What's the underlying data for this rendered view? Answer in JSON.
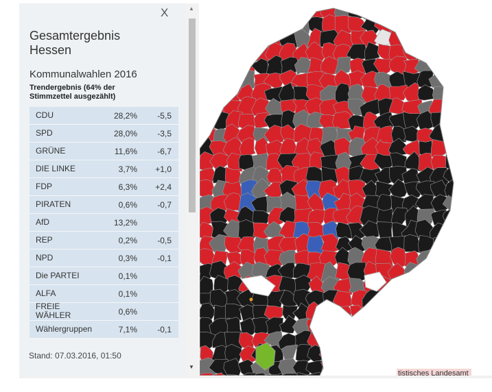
{
  "panel": {
    "close_label": "X",
    "title": "Gesamtergebnis\nHessen",
    "subtitle": "Kommunalwahlen 2016",
    "trend": "Trendergebnis (64% der Stimmzettel ausgezählt)",
    "results": [
      {
        "party": "CDU",
        "pct": "28,2%",
        "diff": "-5,5"
      },
      {
        "party": "SPD",
        "pct": "28,0%",
        "diff": "-3,5"
      },
      {
        "party": "GRÜNE",
        "pct": "11,6%",
        "diff": "-6,7"
      },
      {
        "party": "DIE LINKE",
        "pct": "3,7%",
        "diff": "+1,0"
      },
      {
        "party": "FDP",
        "pct": "6,3%",
        "diff": "+2,4"
      },
      {
        "party": "PIRATEN",
        "pct": "0,6%",
        "diff": "-0,7"
      },
      {
        "party": "AfD",
        "pct": "13,2%",
        "diff": ""
      },
      {
        "party": "REP",
        "pct": "0,2%",
        "diff": "-0,5"
      },
      {
        "party": "NPD",
        "pct": "0,3%",
        "diff": "-0,1"
      },
      {
        "party": "Die PARTEI",
        "pct": "0,1%",
        "diff": ""
      },
      {
        "party": "ALFA",
        "pct": "0,1%",
        "diff": ""
      },
      {
        "party": "FREIE WÄHLER",
        "pct": "0,6%",
        "diff": ""
      },
      {
        "party": "Wählergruppen",
        "pct": "7,1%",
        "diff": "-0,1"
      }
    ],
    "stand": "Stand: 07.03.2016, 01:50"
  },
  "map": {
    "credit": "tistisches Landesamt",
    "colors": {
      "spd": "#d8222a",
      "cdu": "#1a1a1a",
      "other": "#6f6f6f",
      "gruene": "#3a5fb8",
      "green_area": "#76b82a",
      "none": "#e6e6e6",
      "border": "#9a9a9a"
    }
  },
  "scrollbar": {
    "up_icon": "▲",
    "down_icon": "▼"
  }
}
